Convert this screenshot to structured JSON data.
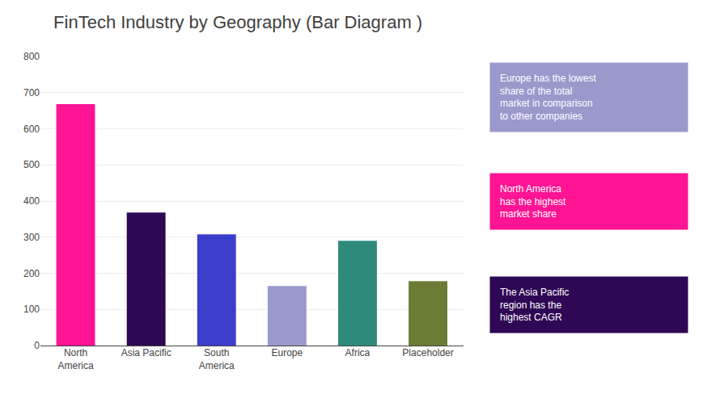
{
  "chart_data": {
    "type": "bar",
    "title": "FinTech Industry by Geography (Bar Diagram )",
    "categories": [
      "North\nAmerica",
      "Asia Pacific",
      "South\nAmerica",
      "Europe",
      "Africa",
      "Placeholder"
    ],
    "values": [
      668,
      368,
      308,
      165,
      290,
      178
    ],
    "colors": [
      "#FF1493",
      "#2E0854",
      "#3D3DCC",
      "#9999CC",
      "#2E8B7A",
      "#6B7C35"
    ],
    "ylim": [
      0,
      800
    ],
    "yticks": [
      0,
      100,
      200,
      300,
      400,
      500,
      600,
      700,
      800
    ],
    "grid": true,
    "annotations": [
      {
        "text": "Europe has the lowest\nshare of the total\nmarket in comparison\nto other companies",
        "color": "#9999CC"
      },
      {
        "text": "North America\nhas the highest\nmarket share",
        "color": "#FF1493"
      },
      {
        "text": "The Asia Pacific\nregion has the\nhighest CAGR",
        "color": "#2E0854"
      }
    ]
  }
}
